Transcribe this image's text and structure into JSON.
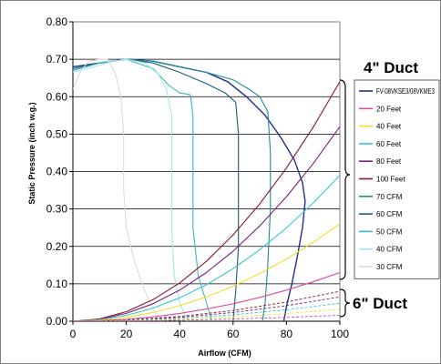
{
  "chart_data": {
    "type": "line",
    "ylabel": "Static Pressure (inch w.g.)",
    "xlabel": "Airflow (CFM)",
    "xlim": [
      0,
      100
    ],
    "ylim": [
      0,
      0.8
    ],
    "xticks": [
      "0",
      "20",
      "40",
      "60",
      "80",
      "100"
    ],
    "yticks": [
      "0.00",
      "0.10",
      "0.20",
      "0.30",
      "0.40",
      "0.50",
      "0.60",
      "0.70",
      "0.80"
    ],
    "grid": "horizontal",
    "annotations": {
      "duct4": "4\" Duct",
      "duct6": "6\" Duct"
    },
    "legend_position": "right",
    "legend": [
      {
        "name": "FV-08VKSE3/08VKME3",
        "color": "#1f2f8f"
      },
      {
        "name": "20 Feet",
        "color": "#d64fa0"
      },
      {
        "name": "40 Feet",
        "color": "#f0e02a"
      },
      {
        "name": "60 Feet",
        "color": "#33c7d6"
      },
      {
        "name": "80 Feet",
        "color": "#7a1f7a"
      },
      {
        "name": "100 Feet",
        "color": "#8b1a2a"
      },
      {
        "name": "70 CFM",
        "color": "#1f8a9a"
      },
      {
        "name": "60 CFM",
        "color": "#1f5a7a"
      },
      {
        "name": "50 CFM",
        "color": "#3bb8c0"
      },
      {
        "name": "40 CFM",
        "color": "#a8e4ec"
      },
      {
        "name": "30 CFM",
        "color": "#dcdcd0"
      }
    ],
    "series": [
      {
        "name": "FV-08VKSE3/08VKME3",
        "color": "#1f2f8f",
        "width": 1.4,
        "dash": false,
        "points": [
          [
            0,
            0.68
          ],
          [
            10,
            0.69
          ],
          [
            20,
            0.7
          ],
          [
            30,
            0.695
          ],
          [
            40,
            0.68
          ],
          [
            50,
            0.665
          ],
          [
            58,
            0.64
          ],
          [
            65,
            0.6
          ],
          [
            72,
            0.55
          ],
          [
            78,
            0.49
          ],
          [
            83,
            0.43
          ],
          [
            86,
            0.37
          ],
          [
            87,
            0.32
          ],
          [
            86,
            0.25
          ],
          [
            84,
            0.17
          ],
          [
            82,
            0.1
          ],
          [
            80,
            0.04
          ],
          [
            79,
            0.0
          ]
        ]
      },
      {
        "name": "70 CFM",
        "color": "#1f8a9a",
        "width": 1.1,
        "dash": false,
        "points": [
          [
            0,
            0.67
          ],
          [
            10,
            0.69
          ],
          [
            20,
            0.7
          ],
          [
            30,
            0.695
          ],
          [
            40,
            0.68
          ],
          [
            50,
            0.665
          ],
          [
            60,
            0.645
          ],
          [
            66,
            0.62
          ],
          [
            70,
            0.6
          ],
          [
            73,
            0.56
          ],
          [
            74,
            0.45
          ],
          [
            74,
            0.3
          ],
          [
            73,
            0.15
          ],
          [
            72,
            0.05
          ],
          [
            71,
            0.0
          ]
        ]
      },
      {
        "name": "60 CFM",
        "color": "#1f5a7a",
        "width": 1.1,
        "dash": false,
        "points": [
          [
            0,
            0.675
          ],
          [
            10,
            0.69
          ],
          [
            20,
            0.7
          ],
          [
            30,
            0.69
          ],
          [
            40,
            0.665
          ],
          [
            50,
            0.635
          ],
          [
            57,
            0.61
          ],
          [
            61,
            0.585
          ],
          [
            62,
            0.5
          ],
          [
            62,
            0.35
          ],
          [
            62,
            0.2
          ],
          [
            61,
            0.08
          ],
          [
            60,
            0.0
          ]
        ]
      },
      {
        "name": "50 CFM",
        "color": "#3bb8c0",
        "width": 1.1,
        "dash": false,
        "points": [
          [
            0,
            0.67
          ],
          [
            10,
            0.69
          ],
          [
            20,
            0.7
          ],
          [
            30,
            0.675
          ],
          [
            36,
            0.63
          ],
          [
            40,
            0.61
          ],
          [
            44,
            0.605
          ],
          [
            45,
            0.55
          ],
          [
            45,
            0.4
          ],
          [
            45,
            0.25
          ],
          [
            47,
            0.12
          ],
          [
            50,
            0.05
          ],
          [
            52,
            0.0
          ]
        ]
      },
      {
        "name": "40 CFM",
        "color": "#a8e4ec",
        "width": 1.1,
        "dash": false,
        "points": [
          [
            0,
            0.665
          ],
          [
            8,
            0.68
          ],
          [
            15,
            0.695
          ],
          [
            20,
            0.7
          ],
          [
            27,
            0.69
          ],
          [
            32,
            0.66
          ],
          [
            35,
            0.62
          ],
          [
            37,
            0.55
          ],
          [
            37,
            0.4
          ],
          [
            37,
            0.25
          ],
          [
            38,
            0.12
          ],
          [
            40,
            0.05
          ],
          [
            43,
            0.0
          ]
        ]
      },
      {
        "name": "30 CFM",
        "color": "#dcdcd0",
        "width": 1.1,
        "dash": false,
        "points": [
          [
            0,
            0.62
          ],
          [
            3,
            0.67
          ],
          [
            6,
            0.695
          ],
          [
            10,
            0.7
          ],
          [
            13,
            0.7
          ],
          [
            16,
            0.66
          ],
          [
            18,
            0.6
          ],
          [
            19,
            0.5
          ],
          [
            19,
            0.35
          ],
          [
            20,
            0.25
          ],
          [
            23,
            0.16
          ],
          [
            27,
            0.08
          ],
          [
            31,
            0.02
          ],
          [
            33,
            0.0
          ]
        ]
      },
      {
        "name": "100 Feet",
        "color": "#8b1a2a",
        "width": 1.1,
        "dash": false,
        "points": [
          [
            0,
            0
          ],
          [
            10,
            0.0064
          ],
          [
            20,
            0.0256
          ],
          [
            30,
            0.0576
          ],
          [
            40,
            0.1024
          ],
          [
            50,
            0.16
          ],
          [
            60,
            0.2304
          ],
          [
            70,
            0.3136
          ],
          [
            80,
            0.4096
          ],
          [
            90,
            0.5184
          ],
          [
            100,
            0.64
          ]
        ]
      },
      {
        "name": "80 Feet",
        "color": "#7a1f7a",
        "width": 1.1,
        "dash": false,
        "points": [
          [
            0,
            0
          ],
          [
            10,
            0.0052
          ],
          [
            20,
            0.0208
          ],
          [
            30,
            0.0468
          ],
          [
            40,
            0.0832
          ],
          [
            50,
            0.13
          ],
          [
            60,
            0.1872
          ],
          [
            70,
            0.2548
          ],
          [
            80,
            0.3328
          ],
          [
            90,
            0.4212
          ],
          [
            100,
            0.52
          ]
        ]
      },
      {
        "name": "60 Feet",
        "color": "#33c7d6",
        "width": 1.1,
        "dash": false,
        "points": [
          [
            0,
            0
          ],
          [
            10,
            0.0039
          ],
          [
            20,
            0.0156
          ],
          [
            30,
            0.0351
          ],
          [
            40,
            0.0624
          ],
          [
            50,
            0.0975
          ],
          [
            60,
            0.1404
          ],
          [
            70,
            0.1911
          ],
          [
            80,
            0.2496
          ],
          [
            90,
            0.3159
          ],
          [
            100,
            0.39
          ]
        ]
      },
      {
        "name": "40 Feet",
        "color": "#f0e02a",
        "width": 1.1,
        "dash": false,
        "points": [
          [
            0,
            0
          ],
          [
            10,
            0.0026
          ],
          [
            20,
            0.0104
          ],
          [
            30,
            0.0234
          ],
          [
            40,
            0.0416
          ],
          [
            50,
            0.065
          ],
          [
            60,
            0.0936
          ],
          [
            70,
            0.1274
          ],
          [
            80,
            0.1664
          ],
          [
            90,
            0.2106
          ],
          [
            100,
            0.26
          ]
        ]
      },
      {
        "name": "20 Feet",
        "color": "#d64fa0",
        "width": 1.1,
        "dash": false,
        "points": [
          [
            0,
            0
          ],
          [
            10,
            0.0013
          ],
          [
            20,
            0.0052
          ],
          [
            30,
            0.0117
          ],
          [
            40,
            0.0208
          ],
          [
            50,
            0.0325
          ],
          [
            60,
            0.0468
          ],
          [
            70,
            0.0637
          ],
          [
            80,
            0.0832
          ],
          [
            90,
            0.1053
          ],
          [
            100,
            0.13
          ]
        ]
      },
      {
        "name": "100 Feet (6\" Duct)",
        "color": "#8b1a2a",
        "width": 0.9,
        "dash": true,
        "points": [
          [
            0,
            0
          ],
          [
            20,
            0.0032
          ],
          [
            40,
            0.0128
          ],
          [
            60,
            0.0288
          ],
          [
            80,
            0.0512
          ],
          [
            100,
            0.08
          ]
        ]
      },
      {
        "name": "80 Feet (6\" Duct)",
        "color": "#7a1f7a",
        "width": 0.9,
        "dash": true,
        "points": [
          [
            0,
            0
          ],
          [
            20,
            0.0026
          ],
          [
            40,
            0.0104
          ],
          [
            60,
            0.0234
          ],
          [
            80,
            0.0416
          ],
          [
            100,
            0.065
          ]
        ]
      },
      {
        "name": "60 Feet (6\" Duct)",
        "color": "#33c7d6",
        "width": 0.9,
        "dash": true,
        "points": [
          [
            0,
            0
          ],
          [
            20,
            0.0019
          ],
          [
            40,
            0.0077
          ],
          [
            60,
            0.0173
          ],
          [
            80,
            0.0307
          ],
          [
            100,
            0.048
          ]
        ]
      },
      {
        "name": "40 Feet (6\" Duct)",
        "color": "#f0e02a",
        "width": 0.9,
        "dash": true,
        "points": [
          [
            0,
            0
          ],
          [
            20,
            0.0013
          ],
          [
            40,
            0.0051
          ],
          [
            60,
            0.0115
          ],
          [
            80,
            0.0205
          ],
          [
            100,
            0.032
          ]
        ]
      },
      {
        "name": "20 Feet (6\" Duct)",
        "color": "#d64fa0",
        "width": 0.9,
        "dash": true,
        "points": [
          [
            0,
            0
          ],
          [
            20,
            0.0006
          ],
          [
            40,
            0.0026
          ],
          [
            60,
            0.0058
          ],
          [
            80,
            0.0102
          ],
          [
            100,
            0.016
          ]
        ]
      }
    ]
  }
}
